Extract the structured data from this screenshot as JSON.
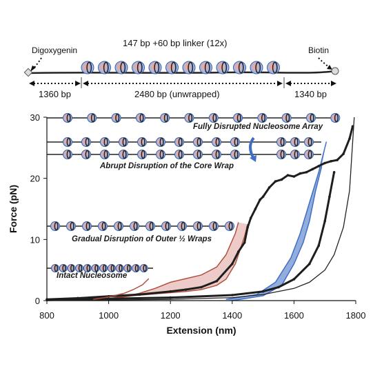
{
  "schematic": {
    "left_label": "Digoxygenin",
    "right_label": "Biotin",
    "repeat_label": "147 bp +60 bp linker (12x)",
    "seg_left_label": "1360 bp",
    "seg_mid_label": "2480 bp (unwrapped)",
    "seg_right_label": "1340 bp",
    "nucleosome_count": 12
  },
  "annotations": {
    "fully_disrupted": "Fully Disrupted Nucleosome Array",
    "abrupt": "Abrupt Disruption of the Core Wrap",
    "gradual": "Gradual Disruption of Outer ½ Wraps",
    "intact": "Intact Nucleosome"
  },
  "colors": {
    "data_trace": "#1e1e1e",
    "model_line": "#222222",
    "blue_band": "#7f9fd8",
    "blue_edge": "#3f6fc4",
    "red_band": "#e7b9b5",
    "red_edge": "#b0503e"
  },
  "chart_data": {
    "type": "line",
    "xlabel": "Extension (nm)",
    "ylabel": "Force (pN)",
    "xlim": [
      800,
      1800
    ],
    "ylim": [
      0,
      30
    ],
    "x_ticks": [
      "800",
      "1000",
      "1200",
      "1400",
      "1600",
      "1800"
    ],
    "y_ticks": [
      "0",
      "10",
      "20",
      "30"
    ],
    "series": [
      {
        "style": "data-trace",
        "points": [
          [
            800,
            0.2
          ],
          [
            900,
            0.4
          ],
          [
            1000,
            0.7
          ],
          [
            1100,
            1.0
          ],
          [
            1200,
            1.5
          ],
          [
            1250,
            1.8
          ],
          [
            1300,
            2.2
          ],
          [
            1350,
            3.2
          ],
          [
            1400,
            6.0
          ],
          [
            1420,
            8.0
          ],
          [
            1440,
            9.5
          ],
          [
            1450,
            12.0
          ],
          [
            1460,
            13.5
          ],
          [
            1475,
            15.0
          ],
          [
            1490,
            16.5
          ],
          [
            1500,
            17.0
          ],
          [
            1520,
            18.5
          ],
          [
            1540,
            19.5
          ],
          [
            1560,
            19.8
          ],
          [
            1580,
            20.5
          ],
          [
            1600,
            20.3
          ],
          [
            1620,
            20.8
          ],
          [
            1640,
            21.0
          ],
          [
            1660,
            21.5
          ],
          [
            1680,
            22.0
          ],
          [
            1700,
            22.5
          ],
          [
            1720,
            22.8
          ],
          [
            1740,
            23.0
          ],
          [
            1760,
            24.0
          ],
          [
            1780,
            26.5
          ],
          [
            1790,
            28.5
          ]
        ]
      },
      {
        "style": "data-trace",
        "points": [
          [
            800,
            0.1
          ],
          [
            1000,
            0.3
          ],
          [
            1200,
            0.5
          ],
          [
            1400,
            0.9
          ],
          [
            1500,
            1.5
          ],
          [
            1550,
            2.2
          ],
          [
            1600,
            3.5
          ],
          [
            1650,
            6.0
          ],
          [
            1680,
            9.0
          ],
          [
            1700,
            13.0
          ],
          [
            1715,
            17.0
          ],
          [
            1730,
            21.0
          ]
        ]
      },
      {
        "style": "model",
        "points": [
          [
            800,
            0.0
          ],
          [
            1000,
            0.1
          ],
          [
            1200,
            0.2
          ],
          [
            1400,
            0.5
          ],
          [
            1500,
            1.0
          ],
          [
            1600,
            2.0
          ],
          [
            1650,
            3.0
          ],
          [
            1700,
            5.0
          ],
          [
            1730,
            7.5
          ],
          [
            1760,
            12.0
          ],
          [
            1780,
            18.0
          ],
          [
            1795,
            30.0
          ]
        ]
      },
      {
        "style": "blue-band",
        "upper": [
          [
            1380,
            0.2
          ],
          [
            1480,
            1.0
          ],
          [
            1540,
            3.0
          ],
          [
            1590,
            7.0
          ],
          [
            1620,
            11.0
          ],
          [
            1650,
            16.0
          ],
          [
            1680,
            21.0
          ],
          [
            1705,
            26.0
          ]
        ],
        "lower": [
          [
            1400,
            0.0
          ],
          [
            1500,
            0.8
          ],
          [
            1560,
            2.5
          ],
          [
            1600,
            6.0
          ],
          [
            1630,
            9.5
          ],
          [
            1650,
            13.0
          ],
          [
            1670,
            18.0
          ],
          [
            1690,
            22.0
          ]
        ]
      },
      {
        "style": "red-band",
        "upper": [
          [
            1000,
            0.3
          ],
          [
            1050,
            0.7
          ],
          [
            1100,
            1.2
          ],
          [
            1150,
            2.0
          ],
          [
            1200,
            3.0
          ],
          [
            1250,
            3.6
          ],
          [
            1300,
            4.2
          ],
          [
            1350,
            5.5
          ],
          [
            1380,
            7.5
          ],
          [
            1410,
            11.0
          ],
          [
            1420,
            12.8
          ]
        ],
        "lower": [
          [
            1000,
            0.3
          ],
          [
            1080,
            0.8
          ],
          [
            1150,
            1.1
          ],
          [
            1200,
            1.3
          ],
          [
            1250,
            1.5
          ],
          [
            1300,
            1.8
          ],
          [
            1350,
            2.5
          ],
          [
            1380,
            3.5
          ],
          [
            1410,
            6.0
          ],
          [
            1440,
            10.5
          ],
          [
            1450,
            12.5
          ]
        ]
      },
      {
        "style": "red-curve",
        "points": [
          [
            950,
            0.2
          ],
          [
            1000,
            0.6
          ],
          [
            1050,
            1.2
          ],
          [
            1080,
            1.8
          ],
          [
            1110,
            2.6
          ],
          [
            1130,
            3.6
          ]
        ]
      }
    ]
  }
}
